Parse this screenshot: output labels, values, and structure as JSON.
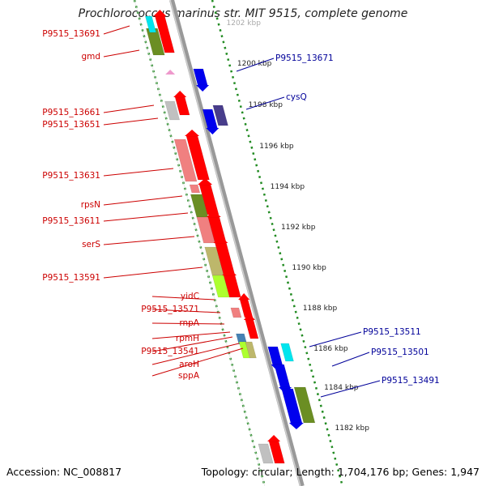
{
  "title": "Prochlorococcus marinus str. MIT 9515, complete genome",
  "footer": {
    "accession": "Accession: NC_008817",
    "topology": "Topology: circular; Length: 1,704,176 bp; Genes: 1,947"
  },
  "colors": {
    "backbone": "#888888",
    "tick": "#228b22",
    "left_label": "#cc0000",
    "right_label": "#000099",
    "cds_red": "#ff0000",
    "cds_pink": "#f08080",
    "cds_olive": "#6b8e23",
    "cds_khaki": "#bdb76b",
    "cds_lime": "#adff2f",
    "cds_cyan": "#00e5ee",
    "cds_blue": "#0000ee",
    "cds_navy": "#483d8b",
    "cds_steel": "#4682b4",
    "cds_gray": "#c0c0c0",
    "rna_pink": "#ee99cc"
  },
  "left_labels": [
    "P9515_13691",
    "gmd",
    "P9515_13661",
    "P9515_13651",
    "P9515_13631",
    "rpsN",
    "P9515_13611",
    "serS",
    "P9515_13591",
    "yidC",
    "P9515_13571",
    "rnpA",
    "rpmH",
    "P9515_13541",
    "aroH",
    "sppA"
  ],
  "right_labels": [
    "P9515_13671",
    "cysQ",
    "P9515_13511",
    "P9515_13501",
    "P9515_13491"
  ],
  "scale_labels": [
    "1202 kbp",
    "1200 kbp",
    "1198 kbp",
    "1196 kbp",
    "1194 kbp",
    "1192 kbp",
    "1190 kbp",
    "1188 kbp",
    "1186 kbp",
    "1184 kbp",
    "1182 kbp"
  ]
}
